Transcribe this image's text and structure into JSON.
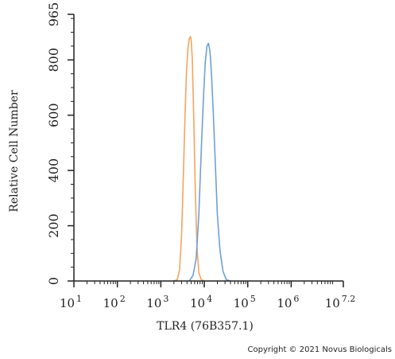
{
  "chart_data": {
    "type": "line",
    "ylabel": "Relative Cell Number",
    "xlabel": "TLR4 (76B357.1)",
    "x_scale": "log",
    "xlim": [
      10,
      15848932
    ],
    "ylim": [
      0,
      965
    ],
    "y_ticks": [
      0,
      200,
      400,
      600,
      800,
      965
    ],
    "y_tick_labels": [
      "0",
      "200",
      "400",
      "600",
      "800",
      "965"
    ],
    "x_ticks": [
      {
        "value": 10,
        "base": "10",
        "exp": "1"
      },
      {
        "value": 100,
        "base": "10",
        "exp": "2"
      },
      {
        "value": 1000,
        "base": "10",
        "exp": "3"
      },
      {
        "value": 10000,
        "base": "10",
        "exp": "4"
      },
      {
        "value": 100000,
        "base": "10",
        "exp": "5"
      },
      {
        "value": 1000000,
        "base": "10",
        "exp": "6"
      },
      {
        "value": 15848932,
        "base": "10",
        "exp": "7.2"
      }
    ],
    "series": [
      {
        "color": "#F4A460",
        "points": [
          [
            2000,
            0
          ],
          [
            2400,
            5
          ],
          [
            2700,
            40
          ],
          [
            3000,
            160
          ],
          [
            3300,
            380
          ],
          [
            3600,
            600
          ],
          [
            3900,
            760
          ],
          [
            4200,
            840
          ],
          [
            4500,
            875
          ],
          [
            4800,
            885
          ],
          [
            5000,
            870
          ],
          [
            5300,
            800
          ],
          [
            5700,
            600
          ],
          [
            6200,
            330
          ],
          [
            6800,
            120
          ],
          [
            7500,
            30
          ],
          [
            8500,
            5
          ],
          [
            10000,
            0
          ]
        ]
      },
      {
        "color": "#6F9FD8",
        "points": [
          [
            4500,
            0
          ],
          [
            5500,
            20
          ],
          [
            6500,
            80
          ],
          [
            7500,
            240
          ],
          [
            8500,
            470
          ],
          [
            9500,
            650
          ],
          [
            10500,
            790
          ],
          [
            11500,
            850
          ],
          [
            12500,
            860
          ],
          [
            13500,
            830
          ],
          [
            14500,
            760
          ],
          [
            16000,
            620
          ],
          [
            18000,
            420
          ],
          [
            20000,
            240
          ],
          [
            23000,
            110
          ],
          [
            27000,
            35
          ],
          [
            32000,
            5
          ],
          [
            40000,
            0
          ]
        ]
      }
    ],
    "grid": false
  },
  "copyright": "Copyright © 2021 Novus Biologicals"
}
